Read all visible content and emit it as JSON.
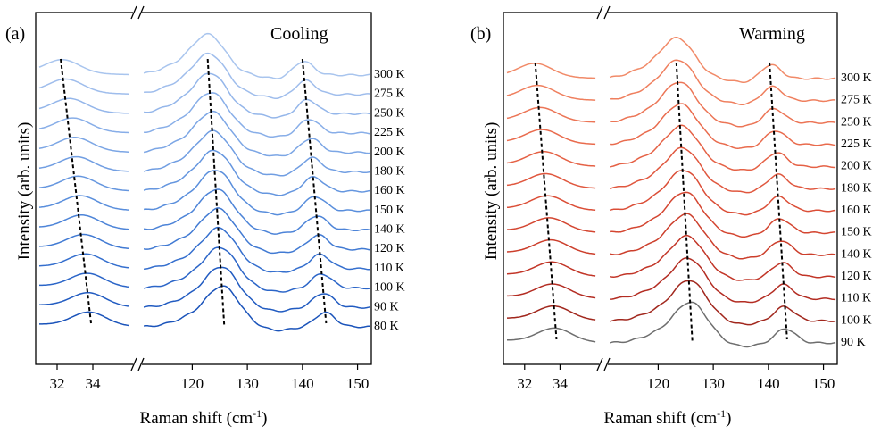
{
  "chart_data": [
    {
      "type": "line",
      "panel_label": "(a)",
      "annotation": "Cooling",
      "title": "",
      "xlabel": "Raman shift (cm",
      "xlabel_sup": "-1",
      "xlabel_close": ")",
      "ylabel": "Intensity (arb. units)",
      "x_segments": [
        {
          "xlim": [
            30.8,
            36.3
          ],
          "ticks": [
            32,
            34
          ]
        },
        {
          "xlim": [
            110.7,
            152.5
          ],
          "ticks": [
            120,
            130,
            140,
            150
          ]
        }
      ],
      "axis_break": true,
      "stacked": true,
      "series": [
        {
          "name": "300 K",
          "color": "#a9c5ee",
          "peaks": [
            32.3,
            123.0,
            140.1
          ]
        },
        {
          "name": "275 K",
          "color": "#9fbdec",
          "peaks": [
            32.5,
            123.2,
            140.5
          ]
        },
        {
          "name": "250 K",
          "color": "#94b6ea",
          "peaks": [
            32.7,
            123.4,
            140.9
          ]
        },
        {
          "name": "225 K",
          "color": "#88aee8",
          "peaks": [
            32.9,
            123.6,
            141.2
          ]
        },
        {
          "name": "200 K",
          "color": "#7ca6e5",
          "peaks": [
            33.0,
            123.8,
            141.5
          ]
        },
        {
          "name": "180 K",
          "color": "#719ee2",
          "peaks": [
            33.1,
            124.0,
            141.7
          ]
        },
        {
          "name": "160 K",
          "color": "#6596df",
          "peaks": [
            33.2,
            124.2,
            142.0
          ]
        },
        {
          "name": "150 K",
          "color": "#598edc",
          "peaks": [
            33.3,
            124.4,
            142.3
          ]
        },
        {
          "name": "140 K",
          "color": "#4d84d8",
          "peaks": [
            33.4,
            124.6,
            142.6
          ]
        },
        {
          "name": "120 K",
          "color": "#417ad3",
          "peaks": [
            33.5,
            124.8,
            142.9
          ]
        },
        {
          "name": "110 K",
          "color": "#356fce",
          "peaks": [
            33.6,
            125.0,
            143.2
          ]
        },
        {
          "name": "100 K",
          "color": "#2b65c8",
          "peaks": [
            33.7,
            125.2,
            143.5
          ]
        },
        {
          "name": "90 K",
          "color": "#215bc1",
          "peaks": [
            33.75,
            125.4,
            143.8
          ]
        },
        {
          "name": "80 K",
          "color": "#1a53ba",
          "peaks": [
            33.8,
            125.6,
            144.1
          ]
        }
      ],
      "guide_lines": [
        {
          "from": [
            32.2,
            "300 K"
          ],
          "to": [
            33.9,
            "80 K"
          ]
        },
        {
          "from": [
            122.8,
            "300 K"
          ],
          "to": [
            125.8,
            "80 K"
          ]
        },
        {
          "from": [
            140.0,
            "300 K"
          ],
          "to": [
            144.3,
            "80 K"
          ]
        }
      ]
    },
    {
      "type": "line",
      "panel_label": "(b)",
      "annotation": "Warming",
      "title": "",
      "xlabel": "Raman shift (cm",
      "xlabel_sup": "-1",
      "xlabel_close": ")",
      "ylabel": "Intensity (arb. units)",
      "x_segments": [
        {
          "xlim": [
            30.8,
            36.3
          ],
          "ticks": [
            32,
            34
          ]
        },
        {
          "xlim": [
            110.7,
            152.5
          ],
          "ticks": [
            120,
            130,
            140,
            150
          ]
        }
      ],
      "axis_break": true,
      "stacked": true,
      "series": [
        {
          "name": "300 K",
          "color": "#f18a68",
          "peaks": [
            32.6,
            123.6,
            140.4
          ]
        },
        {
          "name": "275 K",
          "color": "#ef7f5e",
          "peaks": [
            32.75,
            123.8,
            140.7
          ]
        },
        {
          "name": "250 K",
          "color": "#ec7556",
          "peaks": [
            32.9,
            124.0,
            141.0
          ]
        },
        {
          "name": "225 K",
          "color": "#e96b4d",
          "peaks": [
            33.0,
            124.2,
            141.3
          ]
        },
        {
          "name": "200 K",
          "color": "#e56145",
          "peaks": [
            33.1,
            124.4,
            141.5
          ]
        },
        {
          "name": "180 K",
          "color": "#e0573e",
          "peaks": [
            33.2,
            124.6,
            141.7
          ]
        },
        {
          "name": "160 K",
          "color": "#db4e37",
          "peaks": [
            33.3,
            124.8,
            141.9
          ]
        },
        {
          "name": "150 K",
          "color": "#d44631",
          "peaks": [
            33.4,
            125.0,
            142.1
          ]
        },
        {
          "name": "140 K",
          "color": "#cc3e2b",
          "peaks": [
            33.5,
            125.2,
            142.3
          ]
        },
        {
          "name": "120 K",
          "color": "#c23527",
          "peaks": [
            33.55,
            125.4,
            142.5
          ]
        },
        {
          "name": "110 K",
          "color": "#b32c22",
          "peaks": [
            33.6,
            125.6,
            142.7
          ]
        },
        {
          "name": "100 K",
          "color": "#a1271d",
          "peaks": [
            33.65,
            125.8,
            142.9
          ]
        },
        {
          "name": "90 K",
          "color": "#6e6e6e",
          "peaks": [
            33.7,
            126.0,
            143.1
          ]
        }
      ],
      "guide_lines": [
        {
          "from": [
            32.6,
            "300 K"
          ],
          "to": [
            33.8,
            "90 K"
          ]
        },
        {
          "from": [
            123.3,
            "300 K"
          ],
          "to": [
            126.2,
            "90 K"
          ]
        },
        {
          "from": [
            140.2,
            "300 K"
          ],
          "to": [
            143.4,
            "90 K"
          ]
        }
      ]
    }
  ]
}
